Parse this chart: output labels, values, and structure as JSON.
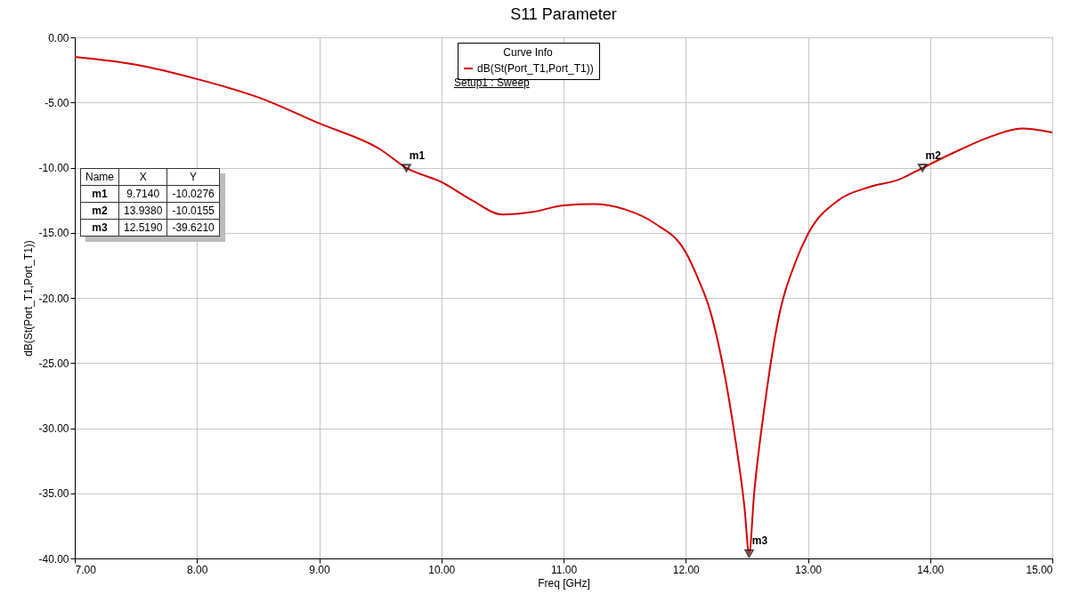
{
  "chart_data": {
    "type": "line",
    "title": "S11 Parameter",
    "xlabel": "Freq [GHz]",
    "ylabel": "dB(St(Port_T1,Port_T1))",
    "legend_title": "Curve Info",
    "legend": "top",
    "x": [
      7,
      7.5,
      8,
      8.5,
      9,
      9.5,
      9.714,
      10,
      10.25,
      10.5,
      10.75,
      11,
      11.25,
      11.5,
      11.75,
      12,
      12.1,
      12.2,
      12.3,
      12.4,
      12.48,
      12.519,
      12.56,
      12.65,
      12.75,
      12.9,
      13,
      13.25,
      13.5,
      13.75,
      13.938,
      14.25,
      14.5,
      14.75,
      15
    ],
    "series": [
      {
        "name": "dB(St(Port_T1,Port_T1))",
        "color": "#d40000",
        "values": [
          -1.5,
          -2.1,
          -3.2,
          -4.6,
          -6.6,
          -8.6,
          -10.03,
          -11.1,
          -12.5,
          -13.6,
          -13.4,
          -12.9,
          -12.8,
          -13.2,
          -14.3,
          -16.5,
          -18.5,
          -21,
          -25,
          -30.5,
          -36,
          -39.62,
          -35,
          -28,
          -22,
          -17.2,
          -15.1,
          -12.5,
          -11.5,
          -10.9,
          -10.02,
          -8.6,
          -7.6,
          -7.0,
          -7.3
        ]
      }
    ],
    "marker": "none",
    "line_style": "solid",
    "grid": true,
    "xlim": [
      7,
      15
    ],
    "xticks": [
      {
        "value": 7,
        "label": "7.00"
      },
      {
        "value": 8,
        "label": "8.00"
      },
      {
        "value": 9,
        "label": "9.00"
      },
      {
        "value": 10,
        "label": "10.00"
      },
      {
        "value": 11,
        "label": "11.00"
      },
      {
        "value": 12,
        "label": "12.00"
      },
      {
        "value": 13,
        "label": "13.00"
      },
      {
        "value": 14,
        "label": "14.00"
      },
      {
        "value": 15,
        "label": "15.00"
      }
    ],
    "ylim": [
      -40,
      0
    ],
    "yticks": [
      {
        "value": -40,
        "label": "-40.00"
      },
      {
        "value": -35,
        "label": "-35.00"
      },
      {
        "value": -30,
        "label": "-30.00"
      },
      {
        "value": -25,
        "label": "-25.00"
      },
      {
        "value": -20,
        "label": "-20.00"
      },
      {
        "value": -15,
        "label": "-15.00"
      },
      {
        "value": -10,
        "label": "-10.00"
      },
      {
        "value": -5,
        "label": "-5.00"
      },
      {
        "value": 0,
        "label": "0.00"
      }
    ],
    "annotations": [
      {
        "text": "m1",
        "x": 9.714,
        "y": -10.0276
      },
      {
        "text": "m2",
        "x": 13.938,
        "y": -10.0155
      },
      {
        "text": "m3",
        "x": 12.519,
        "y": -39.621
      },
      "Setup1 : Sweep",
      "Name",
      "X",
      "Y",
      "m1",
      "9.7140",
      "-10.0276",
      "m2",
      "13.9380",
      "-10.0155",
      "m3",
      "12.5190",
      "-39.6210"
    ]
  }
}
